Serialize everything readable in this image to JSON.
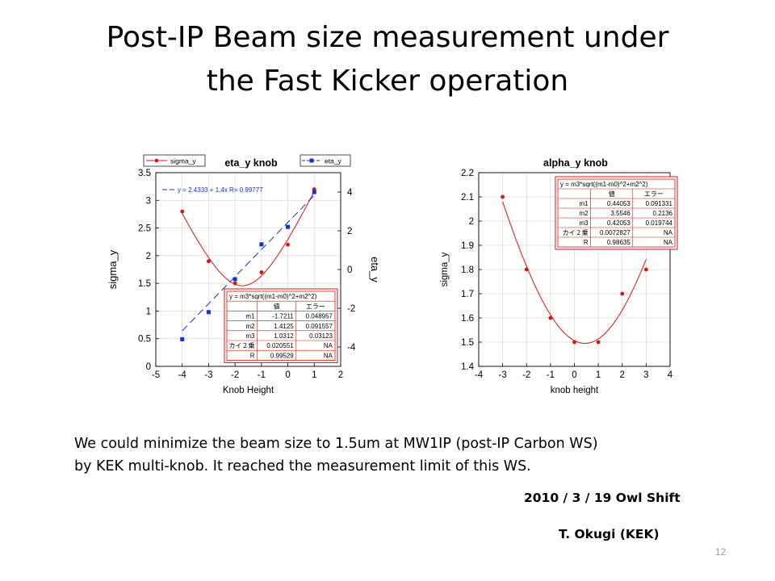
{
  "slide": {
    "title_line1": "Post-IP Beam size measurement under",
    "title_line2": "the Fast Kicker operation",
    "caption_line1": "We could minimize the beam size to 1.5um at MW1IP (post-IP Carbon WS)",
    "caption_line2": "by KEK multi-knob. It reached the measurement limit of this WS.",
    "date": "2010 / 3 / 19 Owl Shift",
    "author": "T. Okugi (KEK)",
    "page_number": "12"
  },
  "chart_data": [
    {
      "type": "scatter",
      "title": "eta_y knob",
      "xlabel": "Knob Height",
      "ylabel": "sigma_y",
      "y2label": "eta_y",
      "xlim": [
        -5,
        2
      ],
      "ylim": [
        0,
        3.5
      ],
      "y2lim": [
        -5,
        5
      ],
      "xticks": [
        "-5",
        "-4",
        "-3",
        "-2",
        "-1",
        "0",
        "1",
        "2"
      ],
      "yticks": [
        "0",
        "0.5",
        "1",
        "1.5",
        "2",
        "2.5",
        "3",
        "3.5"
      ],
      "y2ticks": [
        "-4",
        "-2",
        "0",
        "2",
        "4"
      ],
      "grid": true,
      "colors": {
        "sigma": "#dd1111",
        "eta": "#1133cc"
      },
      "series": [
        {
          "name": "sigma_y",
          "axis": "left",
          "marker": "circle",
          "x": [
            -4,
            -3,
            -2,
            -1,
            0,
            1
          ],
          "y": [
            2.8,
            1.9,
            1.5,
            1.7,
            2.2,
            3.2
          ]
        },
        {
          "name": "eta_y",
          "axis": "right",
          "marker": "square",
          "x": [
            -4,
            -3,
            -2,
            -1,
            0,
            1
          ],
          "y": [
            -3.6,
            -2.2,
            -0.5,
            1.3,
            2.2,
            4.0
          ]
        }
      ],
      "fits": [
        {
          "series": "sigma_y",
          "model": "sqrt",
          "m1": -1.7211,
          "m2": 1.4125,
          "m3": 1.0312,
          "xrange": [
            -4,
            1
          ]
        },
        {
          "series": "eta_y",
          "model": "linear",
          "a": 2.4333,
          "b": 1.4,
          "xrange": [
            -4,
            1
          ]
        }
      ],
      "line_fit_label": "y = 2.4333 + 1.4x  R= 0.99777",
      "legend": [
        "sigma_y",
        "eta_y"
      ],
      "fit_table": {
        "formula": "y = m3*sqrt((m1-m0)^2+m2^2)",
        "headers": [
          "",
          "値",
          "エラー"
        ],
        "rows": [
          [
            "m1",
            "-1.7211",
            "0.048957"
          ],
          [
            "m2",
            "1.4125",
            "0.091557"
          ],
          [
            "m3",
            "1.0312",
            "0.03123"
          ],
          [
            "カイ２乗",
            "0.020551",
            "NA"
          ],
          [
            "R",
            "0.99529",
            "NA"
          ]
        ]
      }
    },
    {
      "type": "scatter",
      "title": "alpha_y knob",
      "xlabel": "knob height",
      "ylabel": "sigma_y",
      "xlim": [
        -4,
        4
      ],
      "ylim": [
        1.4,
        2.2
      ],
      "xticks": [
        "-4",
        "-3",
        "-2",
        "-1",
        "0",
        "1",
        "2",
        "3",
        "4"
      ],
      "yticks": [
        "1.4",
        "1.5",
        "1.6",
        "1.7",
        "1.8",
        "1.9",
        "2",
        "2.1",
        "2.2"
      ],
      "grid": true,
      "colors": {
        "sigma": "#dd1111"
      },
      "series": [
        {
          "name": "sigma_y",
          "axis": "left",
          "marker": "circle",
          "x": [
            -3,
            -2,
            -1,
            0,
            1,
            2,
            3
          ],
          "y": [
            2.1,
            1.8,
            1.6,
            1.5,
            1.5,
            1.7,
            1.8
          ]
        }
      ],
      "fits": [
        {
          "series": "sigma_y",
          "model": "sqrt",
          "m1": 0.44053,
          "m2": 3.5546,
          "m3": 0.42053,
          "xrange": [
            -3,
            3
          ]
        }
      ],
      "fit_table": {
        "formula": "y = m3*sqrt((m1-m0)^2+m2^2)",
        "headers": [
          "",
          "値",
          "エラー"
        ],
        "rows": [
          [
            "m1",
            "0.44053",
            "0.091331"
          ],
          [
            "m2",
            "3.5546",
            "0.2136"
          ],
          [
            "m3",
            "0.42053",
            "0.019744"
          ],
          [
            "カイ２乗",
            "0.0072827",
            "NA"
          ],
          [
            "R",
            "0.98635",
            "NA"
          ]
        ]
      }
    }
  ]
}
